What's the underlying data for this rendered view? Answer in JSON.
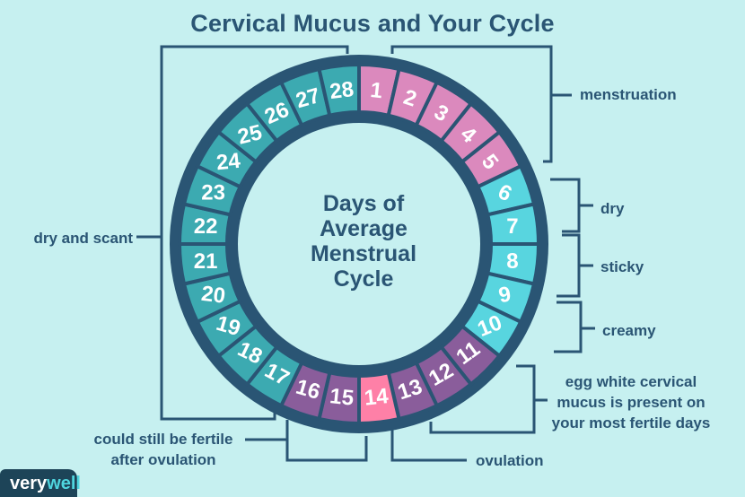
{
  "title": "Cervical Mucus and Your Cycle",
  "center_label": {
    "lines": [
      "Days of",
      "Average",
      "Menstrual",
      "Cycle"
    ]
  },
  "colors": {
    "background": "#c6f0f0",
    "navy": "#2a5574",
    "menstruation_pink": "#db89bd",
    "cyan_mucus": "#58d5df",
    "fertile_purple": "#8a5d9b",
    "ovulation_pink": "#fe80a7",
    "teal_dry": "#3caab1",
    "number_white": "#ffffff",
    "logo_background": "#1d4458",
    "logo_well_teal": "#4fd5de"
  },
  "ring": {
    "total_days": 28,
    "phases": [
      {
        "name": "menstruation",
        "day_start": 1,
        "day_end": 5,
        "color": "#db89bd"
      },
      {
        "name": "dry-sticky-creamy-mucus",
        "day_start": 6,
        "day_end": 10,
        "color": "#58d5df"
      },
      {
        "name": "egg-white-mucus",
        "day_start": 11,
        "day_end": 13,
        "color": "#8a5d9b"
      },
      {
        "name": "ovulation",
        "day_start": 14,
        "day_end": 14,
        "color": "#fe80a7"
      },
      {
        "name": "fertile-after-ovulation",
        "day_start": 15,
        "day_end": 16,
        "color": "#8a5d9b"
      },
      {
        "name": "dry-and-scant",
        "day_start": 17,
        "day_end": 28,
        "color": "#3caab1"
      }
    ]
  },
  "labels": {
    "menstruation": "menstruation",
    "dry": "dry",
    "sticky": "sticky",
    "creamy": "creamy",
    "egg_white": [
      "egg white cervical",
      "mucus is present on",
      "your most fertile days"
    ],
    "ovulation": "ovulation",
    "fertile": [
      "could still be fertile",
      "after ovulation"
    ],
    "dry_and_scant": "dry and scant"
  },
  "logo": {
    "part1": "very",
    "part2": "well"
  }
}
